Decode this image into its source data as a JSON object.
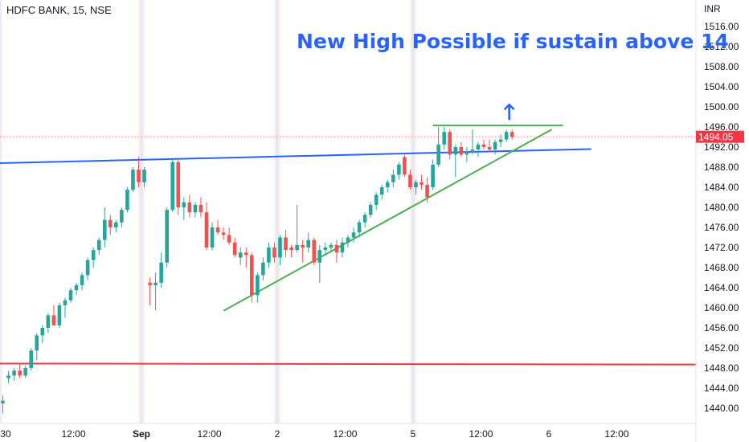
{
  "chart_data": {
    "type": "candlestick",
    "title": "HDFC BANK, 15, NSE",
    "currency": "INR",
    "annotation": "New High Possible if sustain above 14",
    "last_price": "1494.05",
    "y_ticks": [
      "1516.00",
      "1512.00",
      "1508.00",
      "1504.00",
      "1500.00",
      "1496.00",
      "1492.00",
      "1488.00",
      "1484.00",
      "1480.00",
      "1476.00",
      "1472.00",
      "1468.00",
      "1464.00",
      "1460.00",
      "1456.00",
      "1452.00",
      "1448.00",
      "1444.00",
      "1440.00"
    ],
    "ylim": [
      1438,
      1518
    ],
    "x_ticks": [
      {
        "label": "30",
        "pos": 0.5
      },
      {
        "label": "12:00",
        "pos": 12.5
      },
      {
        "label": "Sep",
        "pos": 24.5
      },
      {
        "label": "12:00",
        "pos": 36.5
      },
      {
        "label": "2",
        "pos": 48.5
      },
      {
        "label": "12:00",
        "pos": 60.5
      },
      {
        "label": "5",
        "pos": 72.5
      },
      {
        "label": "12:00",
        "pos": 84.5
      },
      {
        "label": "6",
        "pos": 96.5
      },
      {
        "label": "12:00",
        "pos": 108.5
      }
    ],
    "x_range": [
      -0.5,
      122.5
    ],
    "session_separators": [
      -0.6,
      24.5,
      48.5,
      72.5
    ],
    "colors": {
      "up": "#26a69a",
      "down": "#ef5350",
      "blue_line": "#2962ff",
      "green_line": "#4caf50",
      "red_line": "#f23645",
      "annotation": "#2962ff"
    },
    "candles": [
      [
        1441,
        1442.5,
        1439,
        1441.5
      ],
      [
        1446,
        1447.5,
        1445,
        1446.5
      ],
      [
        1446.5,
        1448,
        1445.5,
        1447.5
      ],
      [
        1447.5,
        1449,
        1446,
        1446.5
      ],
      [
        1446.5,
        1448.5,
        1446,
        1448
      ],
      [
        1448,
        1452,
        1447.5,
        1451.5
      ],
      [
        1451.5,
        1455,
        1449.5,
        1454.5
      ],
      [
        1454.5,
        1456.5,
        1453,
        1456
      ],
      [
        1456,
        1459,
        1455,
        1458.5
      ],
      [
        1458.5,
        1460.5,
        1457,
        1456.5
      ],
      [
        1456.5,
        1461,
        1456,
        1460.5
      ],
      [
        1460.5,
        1462,
        1458,
        1461.5
      ],
      [
        1461.5,
        1464,
        1461,
        1463.5
      ],
      [
        1463.5,
        1465,
        1462.5,
        1464.5
      ],
      [
        1464.5,
        1467,
        1463.5,
        1466.5
      ],
      [
        1466.5,
        1470,
        1465.5,
        1469.5
      ],
      [
        1469.5,
        1472,
        1468,
        1471.5
      ],
      [
        1471.5,
        1474,
        1470.5,
        1473.5
      ],
      [
        1473.5,
        1480,
        1472,
        1477.5
      ],
      [
        1477.5,
        1478.5,
        1474.5,
        1476
      ],
      [
        1476,
        1477.5,
        1475,
        1477
      ],
      [
        1477,
        1480,
        1476,
        1479.5
      ],
      [
        1479.5,
        1484,
        1479,
        1483.5
      ],
      [
        1483.5,
        1488,
        1483,
        1487.5
      ],
      [
        1487.5,
        1490,
        1484,
        1485
      ],
      [
        1485,
        1488,
        1484,
        1487.5
      ],
      [
        1465,
        1466,
        1460.5,
        1464.5
      ],
      [
        1464.5,
        1467,
        1459.5,
        1465
      ],
      [
        1465,
        1471,
        1464,
        1469
      ],
      [
        1469,
        1480,
        1468,
        1479.5
      ],
      [
        1479.5,
        1489.5,
        1479,
        1489
      ],
      [
        1489,
        1489.5,
        1478.5,
        1480
      ],
      [
        1480,
        1482,
        1477.5,
        1481
      ],
      [
        1481,
        1482.5,
        1478,
        1479
      ],
      [
        1479,
        1481,
        1478,
        1480.5
      ],
      [
        1480.5,
        1482,
        1478,
        1479
      ],
      [
        1479,
        1481,
        1471.5,
        1472
      ],
      [
        1472,
        1477,
        1471.5,
        1476
      ],
      [
        1476,
        1477.5,
        1474.5,
        1475
      ],
      [
        1475,
        1476,
        1473.5,
        1474.5
      ],
      [
        1474.5,
        1476,
        1472.5,
        1473
      ],
      [
        1473,
        1474,
        1470,
        1470.5
      ],
      [
        1470,
        1472,
        1468.5,
        1471
      ],
      [
        1471,
        1472,
        1468,
        1470.5
      ],
      [
        1470.5,
        1471,
        1461,
        1462.5
      ],
      [
        1462.5,
        1467,
        1461,
        1466.5
      ],
      [
        1466.5,
        1470,
        1465.5,
        1469
      ],
      [
        1469,
        1473,
        1468,
        1472
      ],
      [
        1472,
        1473,
        1469,
        1470
      ],
      [
        1470,
        1474.5,
        1468.5,
        1474
      ],
      [
        1474,
        1475.5,
        1470,
        1471.5
      ],
      [
        1472,
        1472.5,
        1470,
        1471.5
      ],
      [
        1471.5,
        1480.5,
        1471,
        1472.5
      ],
      [
        1472.5,
        1473.5,
        1469,
        1472
      ],
      [
        1472,
        1475,
        1471,
        1473.5
      ],
      [
        1473.5,
        1474,
        1468.5,
        1469
      ],
      [
        1469,
        1472.5,
        1465,
        1471.5
      ],
      [
        1471.5,
        1473,
        1470.5,
        1472
      ],
      [
        1472,
        1473,
        1471,
        1472.5
      ],
      [
        1472.5,
        1473.5,
        1469,
        1471
      ],
      [
        1471,
        1474,
        1470,
        1473
      ],
      [
        1473,
        1474.5,
        1472,
        1474
      ],
      [
        1474,
        1476,
        1473,
        1475
      ],
      [
        1475,
        1477.5,
        1474,
        1477
      ],
      [
        1477,
        1479,
        1476,
        1478.5
      ],
      [
        1478.5,
        1481,
        1478,
        1480.5
      ],
      [
        1480.5,
        1483,
        1479.5,
        1482.5
      ],
      [
        1482.5,
        1484.5,
        1481.5,
        1484
      ],
      [
        1484,
        1485.5,
        1483,
        1485
      ],
      [
        1485,
        1487.5,
        1484,
        1486.5
      ],
      [
        1486.5,
        1489,
        1485.5,
        1488.5
      ],
      [
        1490,
        1490.5,
        1486,
        1486.5
      ],
      [
        1486.5,
        1487.5,
        1483.5,
        1484
      ],
      [
        1484,
        1485.5,
        1482.5,
        1485
      ],
      [
        1485,
        1486.5,
        1483.5,
        1484.5
      ],
      [
        1484.5,
        1486,
        1481,
        1482
      ],
      [
        1484,
        1489.5,
        1483.5,
        1488.5
      ],
      [
        1488.5,
        1496,
        1488,
        1492.5
      ],
      [
        1492.5,
        1496,
        1491.5,
        1495
      ],
      [
        1495,
        1495.5,
        1489.5,
        1490.5
      ],
      [
        1490.5,
        1492.5,
        1486,
        1492
      ],
      [
        1492,
        1493,
        1490,
        1490.5
      ],
      [
        1490.5,
        1492,
        1489,
        1491
      ],
      [
        1491,
        1495.5,
        1490.5,
        1491.5
      ],
      [
        1491.5,
        1493,
        1490,
        1492.5
      ],
      [
        1492.5,
        1493.5,
        1491.5,
        1492
      ],
      [
        1492,
        1493.5,
        1491,
        1491.5
      ],
      [
        1491.5,
        1493.5,
        1490.5,
        1493
      ],
      [
        1493,
        1494.5,
        1492,
        1493.5
      ],
      [
        1493.5,
        1495.5,
        1493,
        1495
      ],
      [
        1495,
        1495.5,
        1493.5,
        1494
      ]
    ],
    "trendlines": [
      {
        "name": "resistance",
        "color": "#2962ff",
        "from": [
          -0.5,
          1488.8
        ],
        "to": [
          104,
          1491.6
        ]
      },
      {
        "name": "rising-support",
        "color": "#4caf50",
        "from": [
          39,
          1459.4
        ],
        "to": [
          97,
          1495.5
        ]
      },
      {
        "name": "range-top",
        "color": "#4caf50",
        "from": [
          76,
          1496.3
        ],
        "to": [
          99,
          1496.3
        ]
      },
      {
        "name": "support",
        "color": "#f23645",
        "from": [
          -0.5,
          1448.9
        ],
        "to": [
          122.5,
          1448.7
        ]
      }
    ],
    "arrow_at": [
      89.5,
      1499
    ]
  }
}
